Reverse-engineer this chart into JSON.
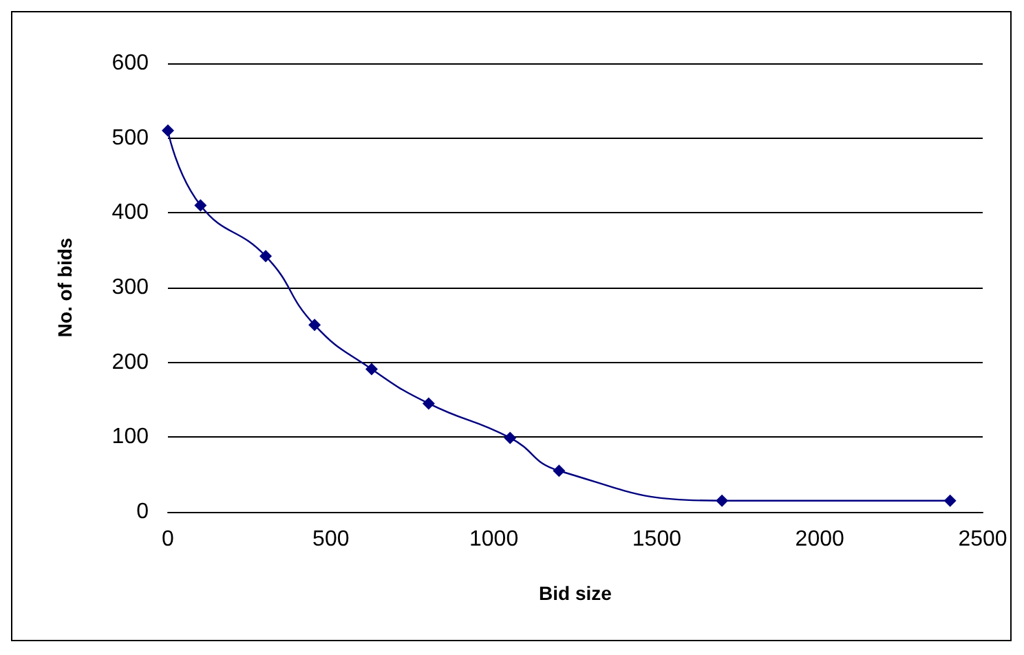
{
  "chart_data": {
    "type": "line",
    "xlabel": "Bid size",
    "ylabel": "No. of bids",
    "x": [
      0,
      100,
      300,
      450,
      625,
      800,
      1050,
      1200,
      1700,
      2400
    ],
    "series": [
      {
        "color": "#000080",
        "values": [
          510,
          410,
          342,
          250,
          191,
          145,
          99,
          55,
          15,
          15
        ]
      }
    ],
    "xlim": [
      0,
      2500
    ],
    "xticks": [
      0,
      500,
      1000,
      1500,
      2000,
      2500
    ],
    "ylim": [
      0,
      600
    ],
    "yticks": [
      0,
      100,
      200,
      300,
      400,
      500,
      600
    ],
    "grid": "y",
    "marker": "diamond",
    "line_style": "solid"
  }
}
